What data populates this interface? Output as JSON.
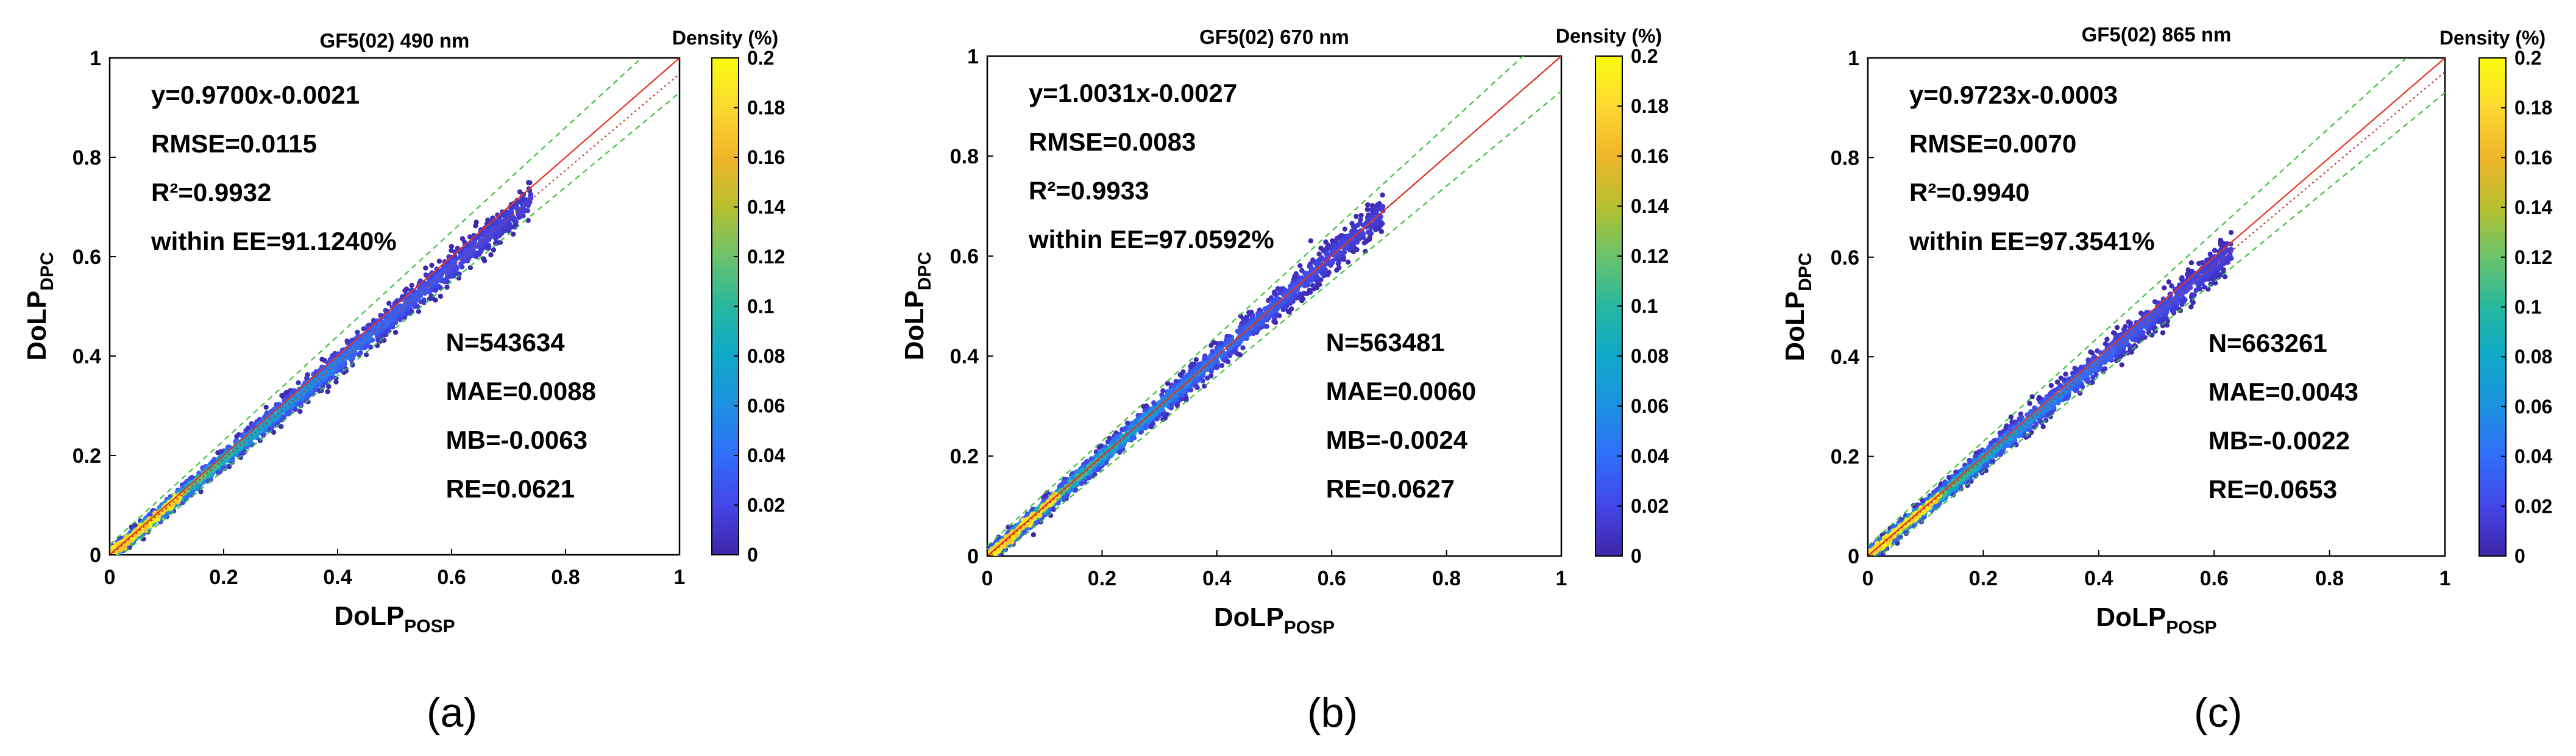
{
  "figure": {
    "colorbar_label": "Density (%)",
    "colorbar_ticks": [
      "0.2",
      "0.18",
      "0.16",
      "0.14",
      "0.12",
      "0.1",
      "0.08",
      "0.06",
      "0.04",
      "0.02",
      "0"
    ],
    "axis_ticks": [
      "0",
      "0.2",
      "0.4",
      "0.6",
      "0.8",
      "1"
    ],
    "x_label_main": "DoLP",
    "x_label_sub": "POSP",
    "y_label_main": "DoLP",
    "y_label_sub": "DPC",
    "colormap": [
      "#3e26a8",
      "#4346e8",
      "#2f6ef9",
      "#1d91e0",
      "#0fa8c9",
      "#26b89e",
      "#6bc26b",
      "#b7c02e",
      "#f0b52a",
      "#fcd830",
      "#f9fb0e"
    ],
    "line_colors": {
      "one_to_one": "#e8331e",
      "fit": "#c0392b",
      "ee": "#3ec23e"
    }
  },
  "chart_data": [
    {
      "type": "scatter",
      "panel_label": "(a)",
      "title": "GF5(02) 490 nm",
      "xlabel": "DoLP_POSP",
      "ylabel": "DoLP_DPC",
      "xlim": [
        0,
        1
      ],
      "ylim": [
        0,
        1
      ],
      "colorbar_range": [
        0,
        0.2
      ],
      "fit": {
        "slope": 0.97,
        "intercept": -0.0021
      },
      "point_max_x": 0.74,
      "stats_upper": [
        "y=0.9700x-0.0021",
        "RMSE=0.0115",
        "R²=0.9932",
        "within EE=91.1240%"
      ],
      "stats_lower": [
        "N=543634",
        "MAE=0.0088",
        "MB=-0.0063",
        "RE=0.0621"
      ]
    },
    {
      "type": "scatter",
      "panel_label": "(b)",
      "title": "GF5(02) 670 nm",
      "xlabel": "DoLP_POSP",
      "ylabel": "DoLP_DPC",
      "xlim": [
        0,
        1
      ],
      "ylim": [
        0,
        1
      ],
      "colorbar_range": [
        0,
        0.2
      ],
      "fit": {
        "slope": 1.0031,
        "intercept": -0.0027
      },
      "point_max_x": 0.69,
      "stats_upper": [
        "y=1.0031x-0.0027",
        "RMSE=0.0083",
        "R²=0.9933",
        "within EE=97.0592%"
      ],
      "stats_lower": [
        "N=563481",
        "MAE=0.0060",
        "MB=-0.0024",
        "RE=0.0627"
      ]
    },
    {
      "type": "scatter",
      "panel_label": "(c)",
      "title": "GF5(02) 865 nm",
      "xlabel": "DoLP_POSP",
      "ylabel": "DoLP_DPC",
      "xlim": [
        0,
        1
      ],
      "ylim": [
        0,
        1
      ],
      "colorbar_range": [
        0,
        0.2
      ],
      "fit": {
        "slope": 0.9723,
        "intercept": -0.0003
      },
      "point_max_x": 0.63,
      "stats_upper": [
        "y=0.9723x-0.0003",
        "RMSE=0.0070",
        "R²=0.9940",
        "within EE=97.3541%"
      ],
      "stats_lower": [
        "N=663261",
        "MAE=0.0043",
        "MB=-0.0022",
        "RE=0.0653"
      ]
    }
  ]
}
